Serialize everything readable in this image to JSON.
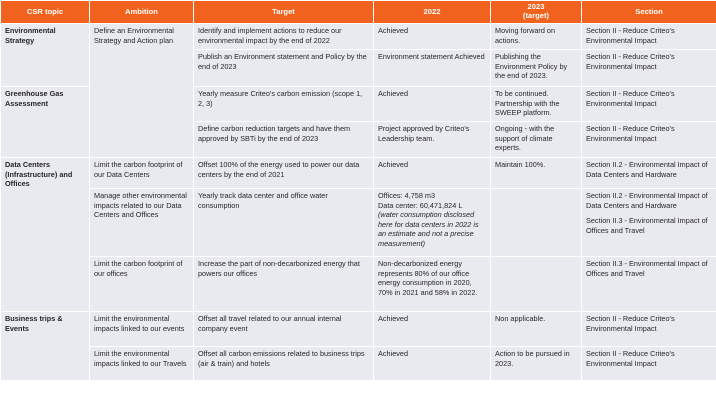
{
  "colors": {
    "header_bg": "#f0621d",
    "cell_bg": "#e9eaf0",
    "topic_text": "#f0621d"
  },
  "headers": [
    "CSR topic",
    "Ambition",
    "Target",
    "2022",
    "2023",
    "(target)",
    "Section"
  ],
  "topics": {
    "environmental": "Environmental Strategy",
    "ghg": "Greenhouse Gas Assessment",
    "datacenters": "Data Centers (Infrastructure) and Offices",
    "business": "Business trips & Events"
  },
  "ambitions": {
    "define_strategy": "Define an Environmental Strategy and Action plan",
    "limit_datacenters": "Limit the carbon footprint of our Data Centers",
    "manage_other": "Manage other environmental impacts related to our Data Centers and Offices",
    "limit_offices": "Limit the carbon footprint of our offices",
    "limit_events": "Limit the environmental impacts linked to our events",
    "limit_travels": "Limit the environmental impacts linked to our Travels"
  },
  "rows": {
    "r1": {
      "target": "Identify and implement actions to reduce our environmental impact by the end of 2022",
      "y2022": "Achieved",
      "y2023": "Moving forward on actions.",
      "section": "Section II - Reduce Criteo's Environmental Impact"
    },
    "r2": {
      "target": "Publish an Environment statement and Policy by the end of 2023",
      "y2022": "Environment statement Achieved",
      "y2023": "Publishing the Environment Policy by the end of 2023.",
      "section": "Section II - Reduce Criteo's Environmental Impact"
    },
    "r3": {
      "target": "Yearly measure Criteo's carbon emission (scope 1, 2, 3)",
      "y2022": "Achieved",
      "y2023": "To be continued. Partnership with the SWEEP platform.",
      "section": "Section II - Reduce Criteo's Environmental Impact"
    },
    "r4": {
      "target": "Define carbon reduction targets and have them approved by SBTi by the end of 2023",
      "y2022": "Project approved by Criteo's Leadership team.",
      "y2023": "Ongoing - with the support of climate experts.",
      "section": "Section II - Reduce Criteo's Environmental Impact"
    },
    "r5": {
      "target": "Offset 100% of the energy used to power our data centers by the end of 2021",
      "y2022": "Achieved",
      "y2023": "Maintain 100%.",
      "section": "Section II.2 - Environmental Impact of Data Centers and Hardware"
    },
    "r6": {
      "target": "Yearly track data center and office water consumption",
      "y2022_offices": "Offices: 4,758 m3",
      "y2022_dc": "Data center: 60,471,824 L",
      "y2022_note": "(water consumption disclosed here for data centers in 2022 is an estimate and not a precise measurement)",
      "y2023": "",
      "section_a": "Section II.2 - Environmental Impact of Data Centers and Hardware",
      "section_b": "Section II.3 - Environmental Impact of Offices and Travel"
    },
    "r7": {
      "target": "Increase the part of non-decarbonized energy that powers our offices",
      "y2022": "Non-decarbonized energy represents 80% of our office energy consumption in 2020, 70% in 2021 and 58% in 2022.",
      "y2023": "",
      "section": "Section II.3 - Environmental Impact of Offices and Travel"
    },
    "r8": {
      "target": "Offset all travel related to our annual internal company event",
      "y2022": "Achieved",
      "y2023": "Non applicable.",
      "section": "Section II - Reduce Criteo's Environmental Impact"
    },
    "r9": {
      "target": "Offset all carbon emissions related to business trips (air & train) and hotels",
      "y2022": "Achieved",
      "y2023": "Action to be pursued in 2023.",
      "section": "Section II - Reduce Criteo's Environmental Impact"
    }
  }
}
